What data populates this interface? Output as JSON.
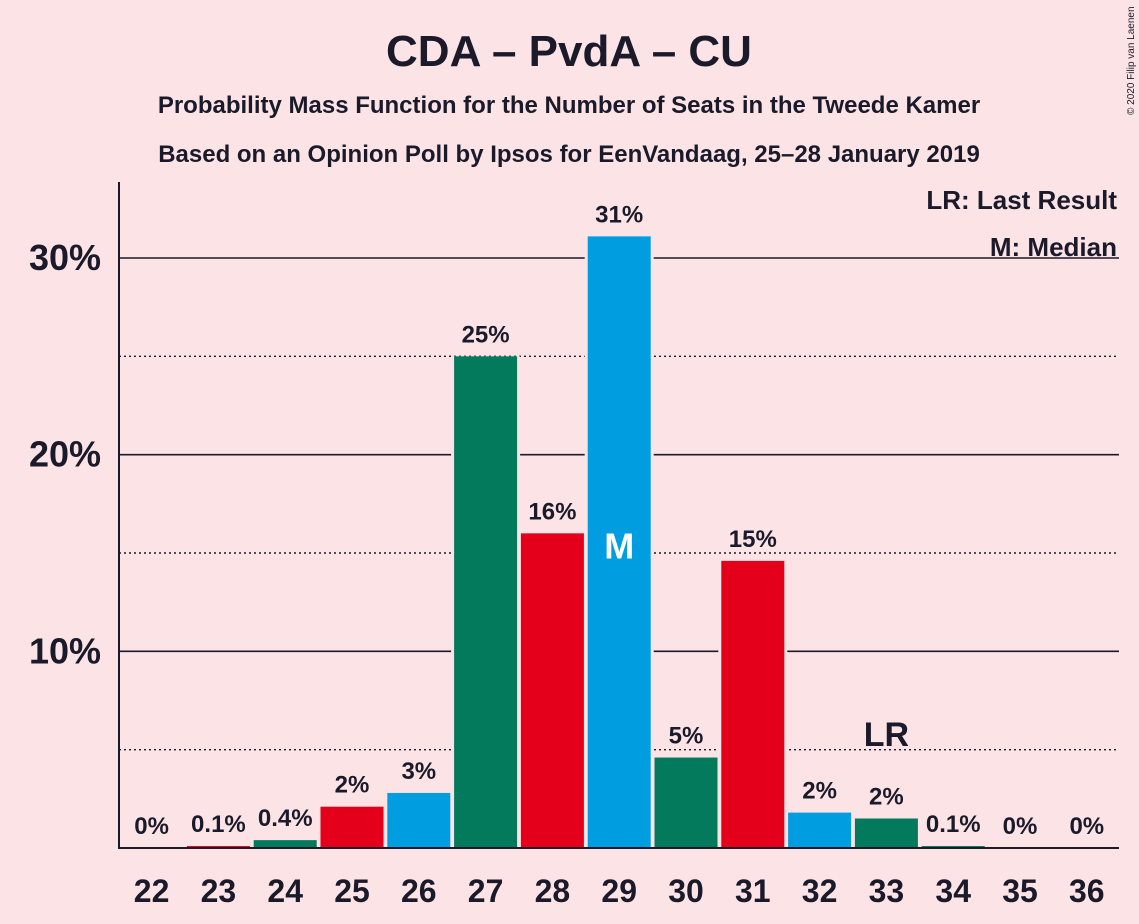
{
  "chart_data": {
    "type": "bar",
    "title": "CDA – PvdA – CU",
    "subtitle1": "Probability Mass Function for the Number of Seats in the Tweede Kamer",
    "subtitle2": "Based on an Opinion Poll by Ipsos for EenVandaag, 25–28 January 2019",
    "copyright": "© 2020 Filip van Laenen",
    "legend": {
      "lr": "LR: Last Result",
      "m": "M: Median",
      "placement": "top-right"
    },
    "categories": [
      "22",
      "23",
      "24",
      "25",
      "26",
      "27",
      "28",
      "29",
      "30",
      "31",
      "32",
      "33",
      "34",
      "35",
      "36"
    ],
    "values": [
      0,
      0.1,
      0.4,
      2.1,
      2.8,
      25.0,
      16.0,
      31.1,
      4.6,
      14.6,
      1.8,
      1.5,
      0.1,
      0,
      0
    ],
    "value_labels": [
      "0%",
      "0.1%",
      "0.4%",
      "2%",
      "3%",
      "25%",
      "16%",
      "31%",
      "5%",
      "15%",
      "2%",
      "2%",
      "0.1%",
      "0%",
      "0%"
    ],
    "bar_colors": [
      "#047a5c",
      "#e4001b",
      "#047a5c",
      "#e4001b",
      "#009ee0",
      "#047a5c",
      "#e4001b",
      "#009ee0",
      "#047a5c",
      "#e4001b",
      "#009ee0",
      "#047a5c",
      "#047a5c",
      "#e4001b",
      "#009ee0"
    ],
    "ylim": [
      0,
      34
    ],
    "y_ticks": [
      {
        "value": 10,
        "label": "10%"
      },
      {
        "value": 20,
        "label": "20%"
      },
      {
        "value": 30,
        "label": "30%"
      }
    ],
    "minor_gridlines": [
      5,
      15,
      25
    ],
    "median_seat": "29",
    "median_marker": "M",
    "last_result_seat": "33",
    "last_result_marker": "LR",
    "background": "#fce4e6"
  }
}
